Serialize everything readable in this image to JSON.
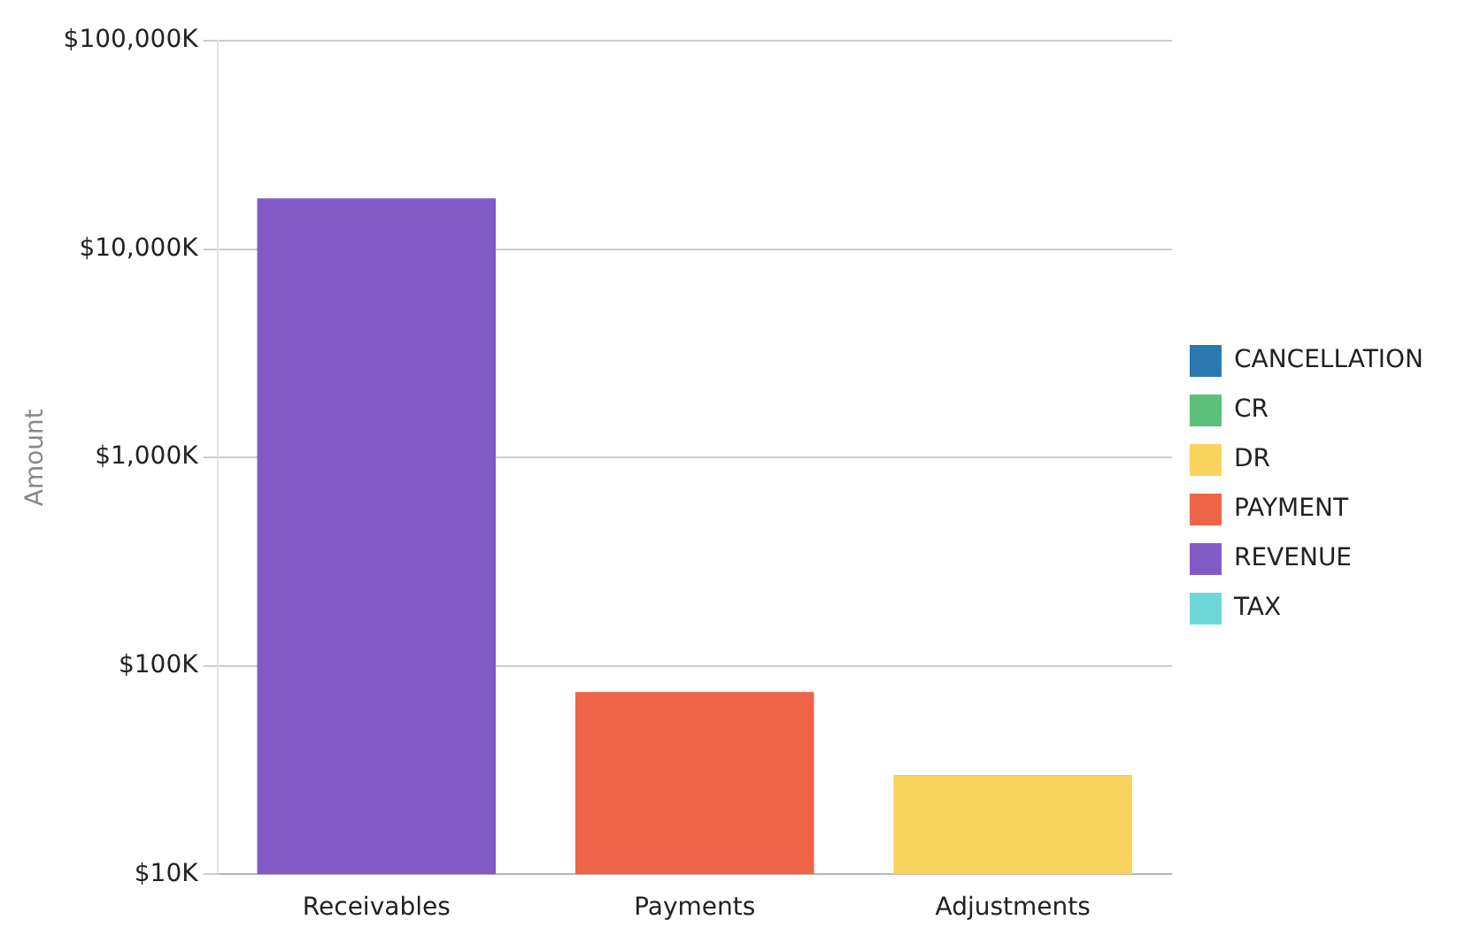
{
  "chart_data": {
    "type": "bar",
    "ylabel": "Amount",
    "categories": [
      "Receivables",
      "Payments",
      "Adjustments"
    ],
    "series": [
      {
        "name": "CANCELLATION",
        "color": "#2a78b0",
        "values": [
          null,
          null,
          null
        ]
      },
      {
        "name": "CR",
        "color": "#5cbf7a",
        "values": [
          null,
          null,
          null
        ]
      },
      {
        "name": "DR",
        "color": "#f7d35c",
        "values": [
          null,
          null,
          30
        ]
      },
      {
        "name": "PAYMENT",
        "color": "#ee6446",
        "values": [
          null,
          75,
          null
        ]
      },
      {
        "name": "REVENUE",
        "color": "#815ac6",
        "values": [
          17500,
          null,
          null
        ]
      },
      {
        "name": "TAX",
        "color": "#6ed8d8",
        "values": [
          null,
          null,
          null
        ]
      }
    ],
    "log": "y",
    "ylim": [
      10,
      100000
    ],
    "yticks": [
      {
        "value": 10,
        "label": "$10K"
      },
      {
        "value": 100,
        "label": "$100K"
      },
      {
        "value": 1000,
        "label": "$1,000K"
      },
      {
        "value": 10000,
        "label": "$10,000K"
      },
      {
        "value": 100000,
        "label": "$100,000K"
      }
    ],
    "grid": "y",
    "legend": "right"
  }
}
